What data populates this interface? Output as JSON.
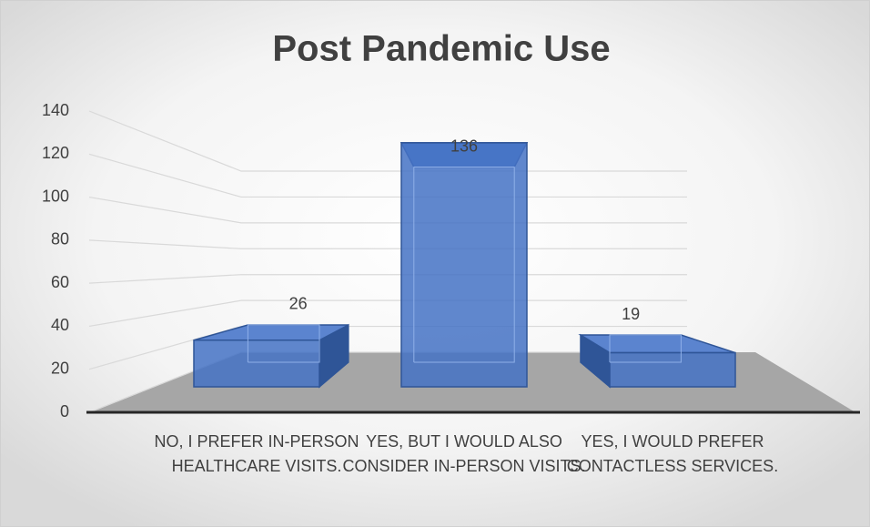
{
  "chart_data": {
    "type": "bar3d",
    "title": "Post Pandemic Use",
    "categories": [
      "NO, I PREFER IN-PERSON HEALTHCARE VISITS.",
      "YES, BUT I WOULD ALSO CONSIDER IN-PERSON VISITS.",
      "YES, I WOULD PREFER CONTACTLESS SERVICES."
    ],
    "values": [
      26,
      136,
      19
    ],
    "color": "#4472c4",
    "ylim": [
      0,
      140
    ],
    "yticks": [
      0,
      20,
      40,
      60,
      80,
      100,
      120,
      140
    ],
    "grid": true
  }
}
